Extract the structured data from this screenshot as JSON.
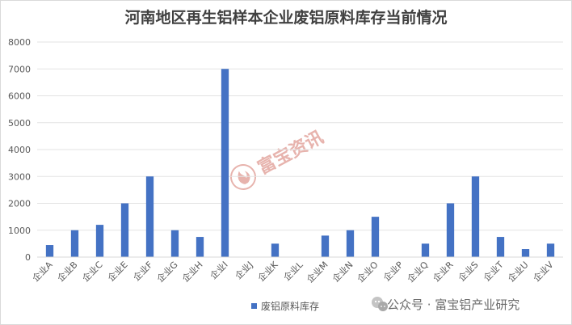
{
  "chart_data": {
    "type": "bar",
    "title": "河南地区再生铝样本企业废铝原料库存当前情况",
    "categories": [
      "企业A",
      "企业B",
      "企业C",
      "企业E",
      "企业F",
      "企业G",
      "企业H",
      "企业I",
      "企业J",
      "企业K",
      "企业L",
      "企业M",
      "企业N",
      "企业O",
      "企业P",
      "企业Q",
      "企业R",
      "企业S",
      "企业T",
      "企业U",
      "企业V"
    ],
    "series": [
      {
        "name": "废铝原料库存",
        "color": "#4472c4",
        "values": [
          450,
          1000,
          1200,
          2000,
          3000,
          1000,
          750,
          7000,
          0,
          500,
          0,
          800,
          1000,
          1500,
          0,
          500,
          2000,
          3000,
          750,
          300,
          500
        ]
      }
    ],
    "xlabel": "",
    "ylabel": "",
    "ylim": [
      0,
      8000
    ],
    "yticks": [
      0,
      1000,
      2000,
      3000,
      4000,
      5000,
      6000,
      7000,
      8000
    ],
    "grid": true,
    "legend_position": "bottom"
  },
  "watermark": {
    "text": "富宝资讯",
    "icon": "flame-logo-icon"
  },
  "footer": {
    "icon": "wechat-icon",
    "text": "公众号 · 富宝铝产业研究"
  }
}
